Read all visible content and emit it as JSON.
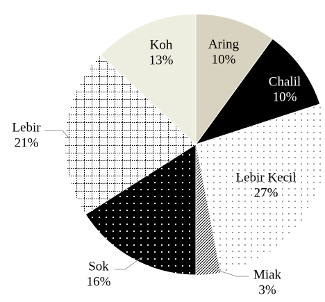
{
  "chart_data": {
    "type": "pie",
    "categories": [
      "Aring",
      "Chalil",
      "Lebir Kecil",
      "Miak",
      "Sok",
      "Lebir",
      "Koh"
    ],
    "values": [
      10,
      10,
      27,
      3,
      16,
      21,
      13
    ],
    "value_labels": [
      "10%",
      "10%",
      "27%",
      "3%",
      "16%",
      "21%",
      "13%"
    ],
    "colors": [
      "#d8d2c0",
      "#000000",
      "#ffffff",
      "#ffffff",
      "#000000",
      "#ffffff",
      "#eeeee0"
    ]
  }
}
